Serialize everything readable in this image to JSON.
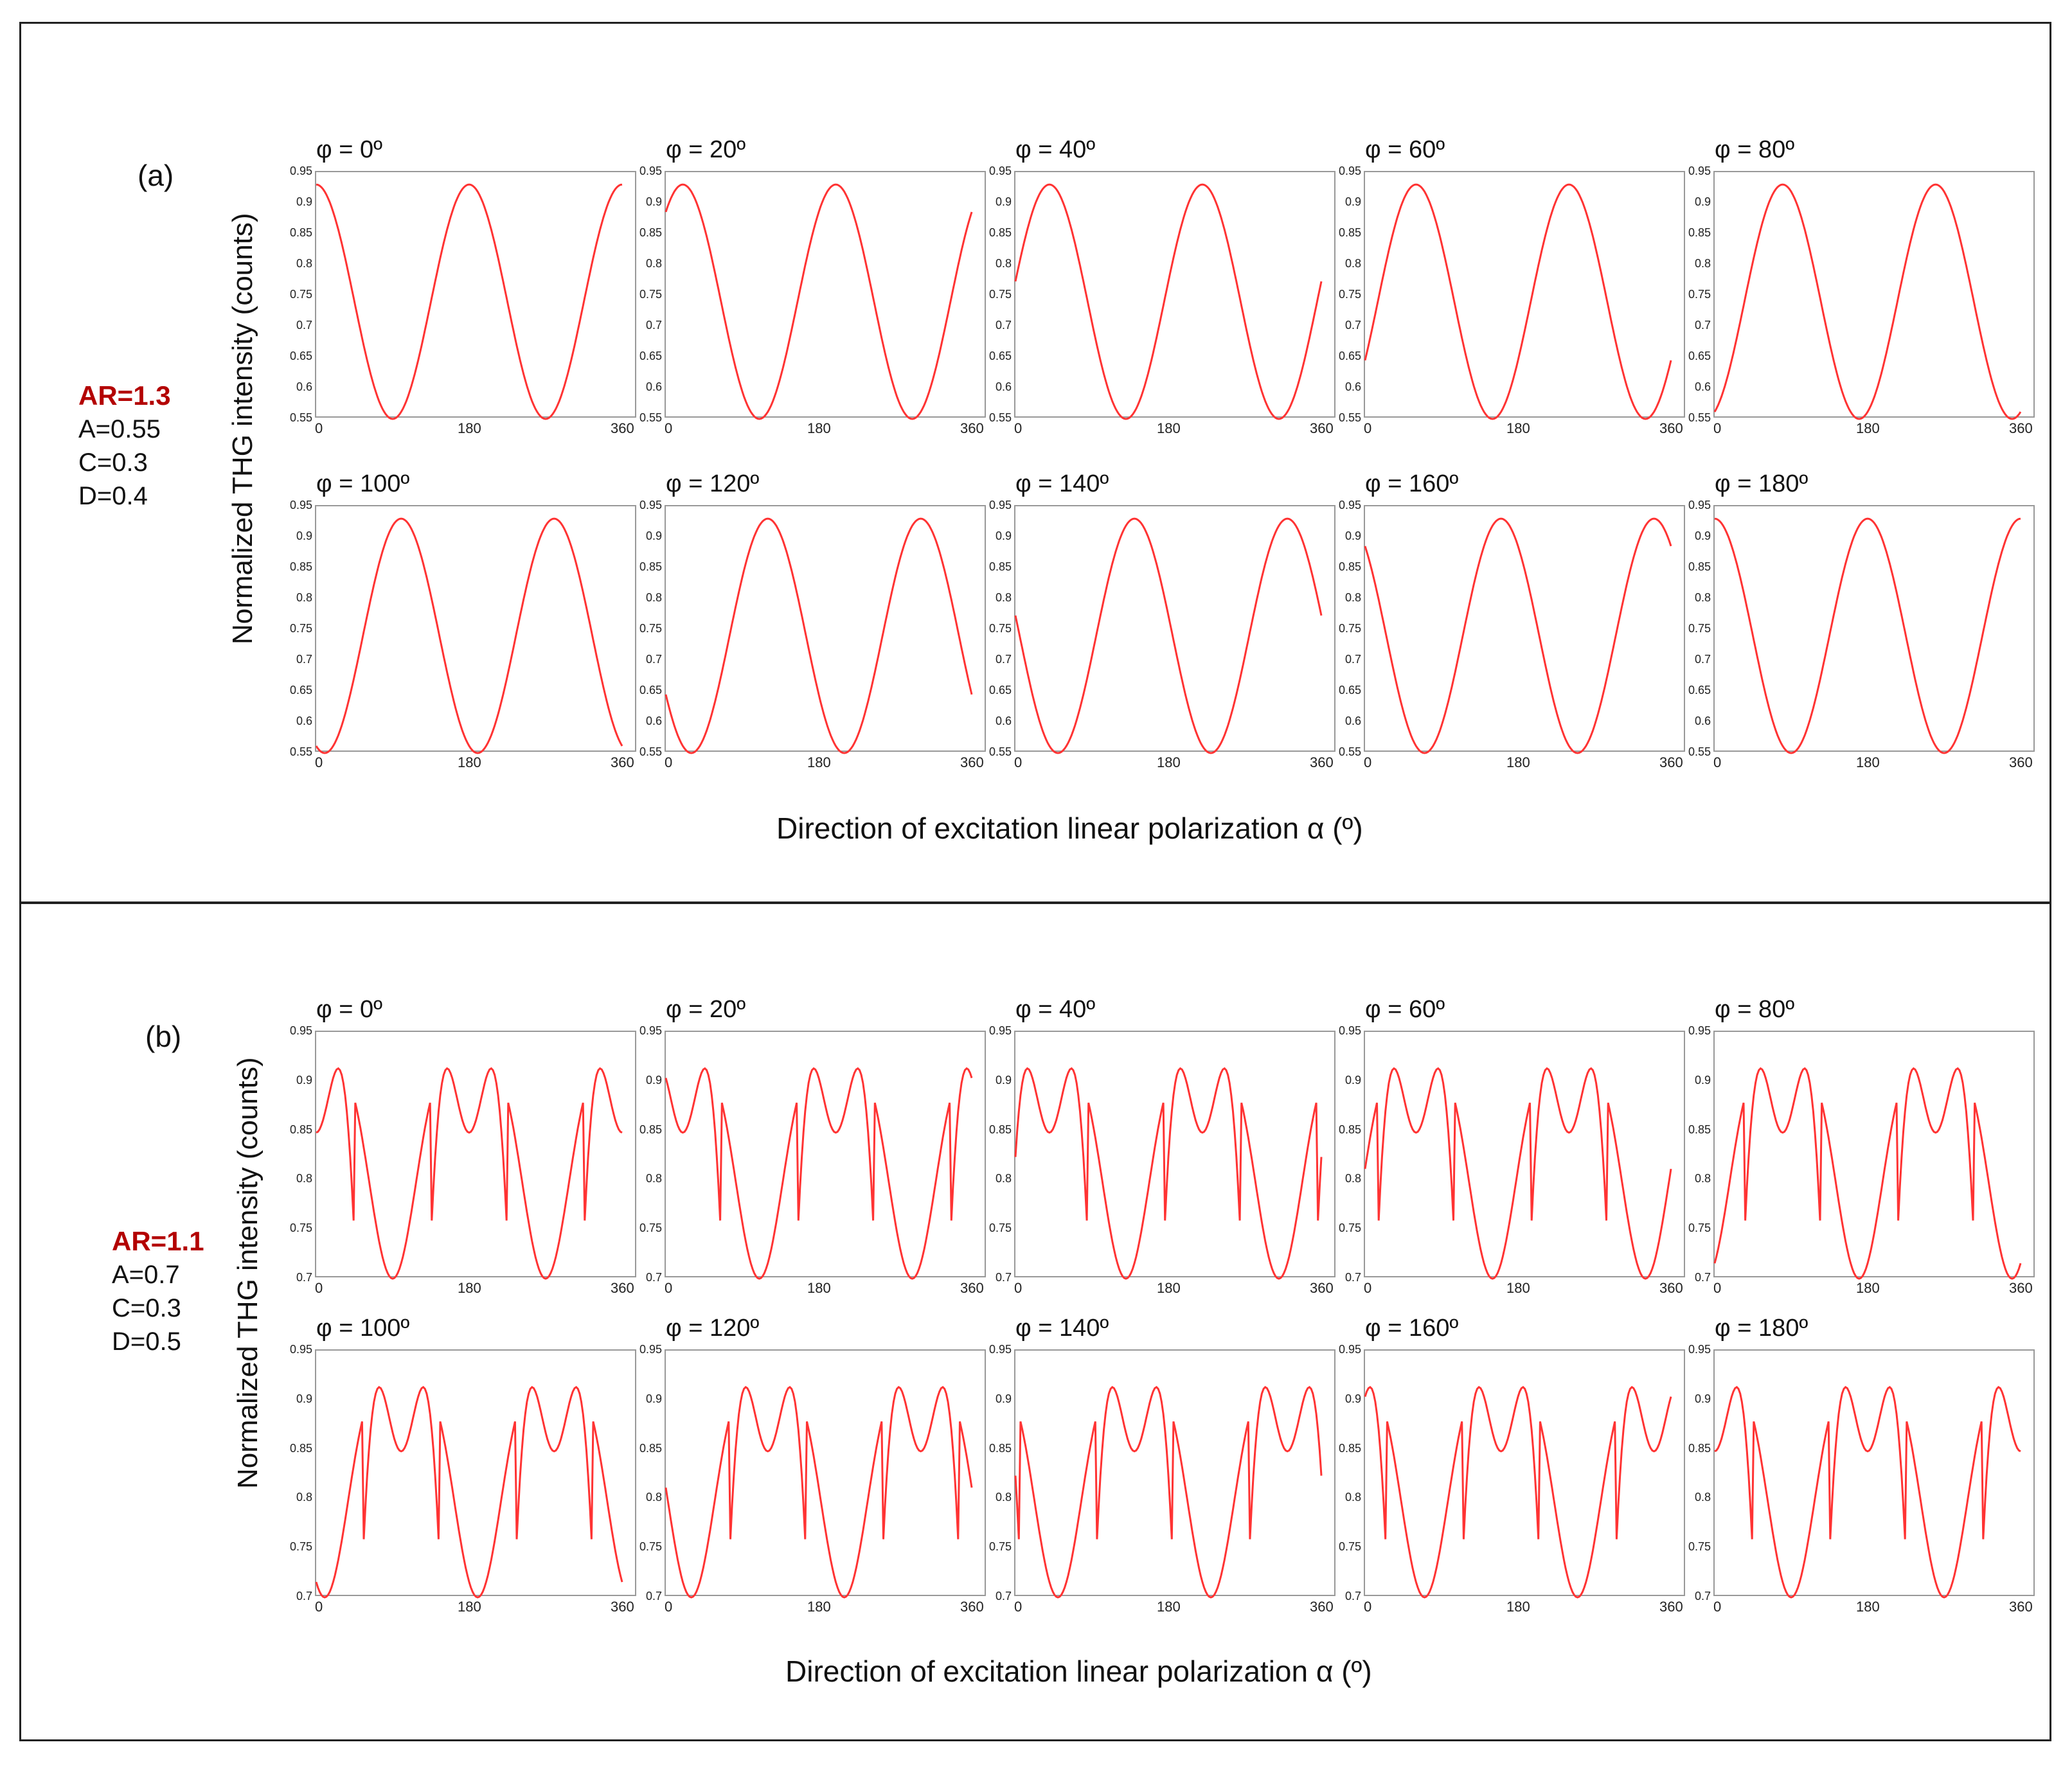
{
  "chart_data": [
    {
      "type": "line",
      "panel": "(a)",
      "params": {
        "ar": "AR=1.3",
        "a": "A=0.55",
        "c": "C=0.3",
        "d": "D=0.4"
      },
      "ylabel": "Normalized THG intensity (counts)",
      "xlabel": "Direction of excitation linear polarization α (º)",
      "xlim": [
        0,
        360
      ],
      "ylim": [
        0.55,
        0.95
      ],
      "xticks": [
        "0",
        "180",
        "360"
      ],
      "yticks": [
        "0.95",
        "0.9",
        "0.85",
        "0.8",
        "0.75",
        "0.7",
        "0.65",
        "0.6",
        "0.55"
      ],
      "line_color": "#ff3333",
      "min_value": 0.55,
      "max_value": 0.93,
      "subplots": [
        {
          "label": "φ = 0º",
          "phi": 0
        },
        {
          "label": "φ = 20º",
          "phi": 20
        },
        {
          "label": "φ = 40º",
          "phi": 40
        },
        {
          "label": "φ = 60º",
          "phi": 60
        },
        {
          "label": "φ = 80º",
          "phi": 80
        },
        {
          "label": "φ = 100º",
          "phi": 100
        },
        {
          "label": "φ = 120º",
          "phi": 120
        },
        {
          "label": "φ = 140º",
          "phi": 140
        },
        {
          "label": "φ = 160º",
          "phi": 160
        },
        {
          "label": "φ = 180º",
          "phi": 180
        }
      ]
    },
    {
      "type": "line",
      "panel": "(b)",
      "params": {
        "ar": "AR=1.1",
        "a": "A=0.7",
        "c": "C=0.3",
        "d": "D=0.5"
      },
      "ylabel": "Normalized THG intensity (counts)",
      "xlabel": "Direction of excitation linear polarization α (º)",
      "xlim": [
        0,
        360
      ],
      "ylim": [
        0.7,
        0.95
      ],
      "xticks": [
        "0",
        "180",
        "360"
      ],
      "yticks": [
        "0.95",
        "0.9",
        "0.85",
        "0.8",
        "0.75",
        "0.7"
      ],
      "line_color": "#ff3333",
      "min_value": 0.7,
      "max_value": 0.913,
      "local_min_value": 0.848,
      "subplots": [
        {
          "label": "φ = 0º",
          "phi": 0
        },
        {
          "label": "φ = 20º",
          "phi": 20
        },
        {
          "label": "φ = 40º",
          "phi": 40
        },
        {
          "label": "φ = 60º",
          "phi": 60
        },
        {
          "label": "φ = 80º",
          "phi": 80
        },
        {
          "label": "φ = 100º",
          "phi": 100
        },
        {
          "label": "φ = 120º",
          "phi": 120
        },
        {
          "label": "φ = 140º",
          "phi": 140
        },
        {
          "label": "φ = 160º",
          "phi": 160
        },
        {
          "label": "φ = 180º",
          "phi": 180
        }
      ]
    }
  ]
}
